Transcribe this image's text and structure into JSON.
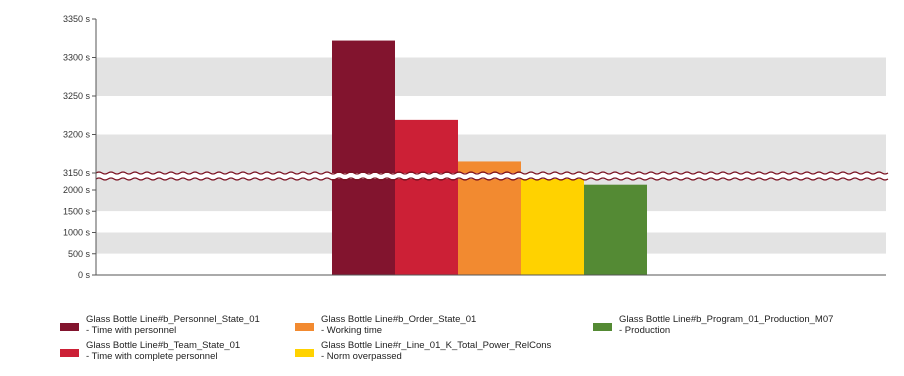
{
  "chart_data": {
    "type": "bar",
    "axis_break": true,
    "grid": "alternating horizontal bands",
    "legend_position": "bottom",
    "y_axis": {
      "upper_segment": {
        "range": [
          3150,
          3350
        ],
        "ticks": [
          "3350 s",
          "3300 s",
          "3250 s",
          "3200 s",
          "3150 s"
        ],
        "tick_values": [
          3350,
          3300,
          3250,
          3200,
          3150
        ]
      },
      "lower_segment": {
        "range": [
          0,
          2000
        ],
        "ticks": [
          "2000 s",
          "1500 s",
          "1000 s",
          "500 s",
          "0 s"
        ],
        "tick_values": [
          2000,
          1500,
          1000,
          500,
          0
        ]
      },
      "unit": "s"
    },
    "series": [
      {
        "name": "Glass Bottle Line#b_Personnel_State_01",
        "sub": "- Time with personnel",
        "value": 3322,
        "color": "#82142e"
      },
      {
        "name": "Glass Bottle Line#b_Team_State_01",
        "sub": "- Time with complete personnel",
        "value": 3219,
        "color": "#cc2036"
      },
      {
        "name": "Glass Bottle Line#b_Order_State_01",
        "sub": "- Working time",
        "value": 3165,
        "color": "#f28a30"
      },
      {
        "name": "Glass Bottle Line#r_Line_01_K_Total_Power_RelCons",
        "sub": "- Norm overpassed",
        "value": 2385,
        "color": "#ffd200"
      },
      {
        "name": "Glass Bottle Line#b_Program_01_Production_M07",
        "sub": "- Production",
        "value": 2125,
        "color": "#548a34"
      }
    ]
  }
}
